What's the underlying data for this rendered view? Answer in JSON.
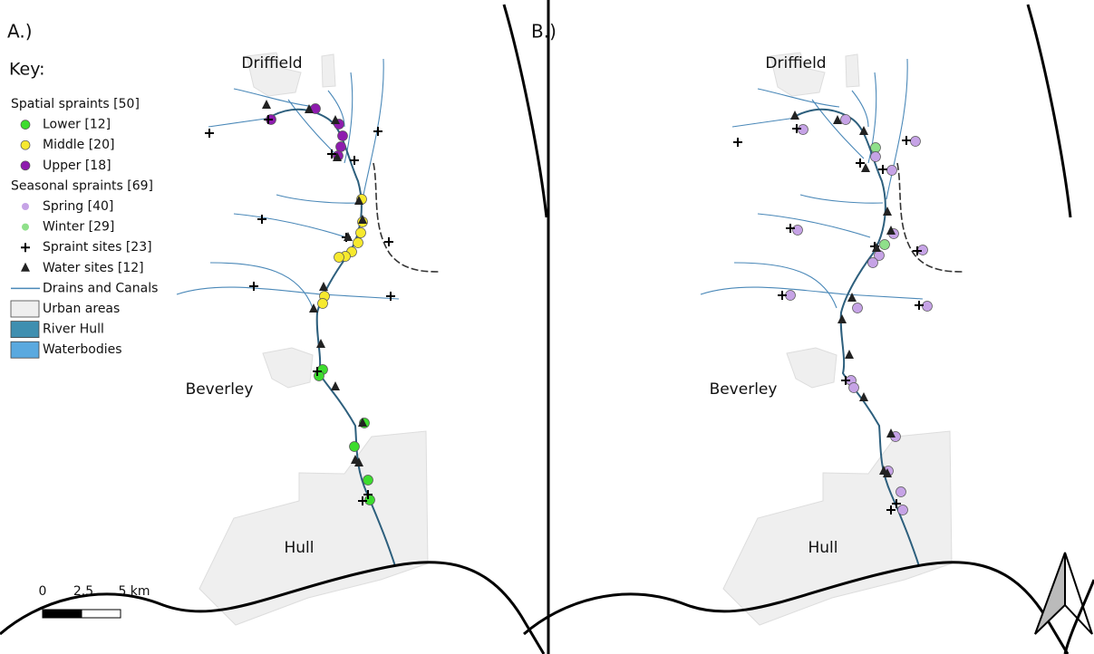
{
  "panels": [
    {
      "label": "A.)",
      "places": [
        "Driffield",
        "Beverley",
        "Hull"
      ]
    },
    {
      "label": "B.)",
      "places": [
        "Driffield",
        "Beverley",
        "Hull"
      ]
    }
  ],
  "legend": {
    "title": "Key:",
    "entries": [
      "Spatial spraints [50]",
      "Lower [12]",
      "Middle [20]",
      "Upper [18]",
      "Seasonal spraints [69]",
      "Spring [40]",
      "Winter [29]",
      "Spraint sites [23]",
      "Water sites [12]",
      "Drains and Canals",
      "Urban areas",
      "River Hull",
      "Waterbodies"
    ]
  },
  "scale_bar": {
    "labels": [
      "0",
      "2.5",
      "5 km"
    ]
  }
}
